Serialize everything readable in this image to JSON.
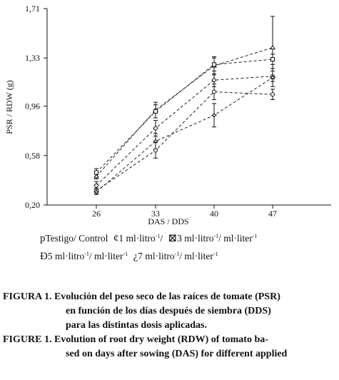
{
  "chart_data": {
    "type": "line",
    "ylabel": "PSR / RDW (g)",
    "xlabel": "DAS / DDS",
    "x": [
      26,
      33,
      40,
      47
    ],
    "x_tick_labels": [
      "26",
      "33",
      "40",
      "47"
    ],
    "ylim": [
      0.2,
      1.71
    ],
    "y_ticks": [
      0.2,
      0.58,
      0.96,
      1.33,
      1.71
    ],
    "y_tick_labels": [
      "0,20",
      "0,58",
      "0,96",
      "1,33",
      "1,71"
    ],
    "grid": false,
    "legend_position": "bottom",
    "series": [
      {
        "marker": "triangle",
        "values": [
          0.42,
          0.93,
          1.27,
          1.41
        ],
        "errors": [
          0.02,
          0.06,
          0.07,
          0.24
        ]
      },
      {
        "marker": "square",
        "values": [
          0.45,
          0.92,
          1.28,
          1.32
        ],
        "errors": [
          0.03,
          0.05,
          0.05,
          0.04
        ]
      },
      {
        "marker": "diamond",
        "values": [
          0.35,
          0.79,
          1.16,
          1.19
        ],
        "errors": [
          0.03,
          0.06,
          0.05,
          0.04
        ]
      },
      {
        "marker": "circle",
        "values": [
          0.31,
          0.62,
          1.07,
          1.05
        ],
        "errors": [
          0.02,
          0.06,
          0.06,
          0.04
        ]
      },
      {
        "marker": "star",
        "values": [
          0.3,
          0.69,
          0.89,
          1.18
        ],
        "errors": [
          0.02,
          0.06,
          0.09,
          0.07
        ]
      }
    ]
  },
  "legend": {
    "row1": [
      {
        "symbol": "p",
        "text": "Testigo/ Control"
      },
      {
        "symbol": "¢",
        "text": "1 ml·litro",
        "sup": "-1",
        "after": "/"
      },
      {
        "symbol": "⊠",
        "text": "3 ml·litro",
        "sup": "-1",
        "after": "/ ml·liter",
        "sup2": "-1"
      }
    ],
    "row2": [
      {
        "symbol": "Ð",
        "text": "5 ml·litro",
        "sup": "-1",
        "after": "/ ml·liter",
        "sup2": "-1"
      },
      {
        "symbol": "¿",
        "text": "7 ml·litro",
        "sup": "-1",
        "after": "/ ml·liter",
        "sup2": "-1"
      }
    ]
  },
  "caption": {
    "es_label": "FIGURA 1.",
    "es_line1": "Evolución del peso seco de las raíces de tomate (PSR)",
    "es_line2": "en función de los días después de siembra (DDS)",
    "es_line3": "para las distintas dosis aplicadas.",
    "en_label": "FIGURE 1.",
    "en_line1": "Evolution of root dry weight (RDW) of tomato ba-",
    "en_line2": "sed on days after sowing (DAS) for different applied"
  }
}
